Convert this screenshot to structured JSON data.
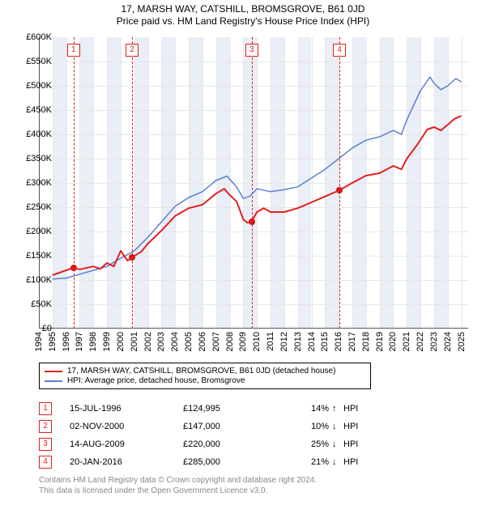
{
  "title": "17, MARSH WAY, CATSHILL, BROMSGROVE, B61 0JD",
  "subtitle": "Price paid vs. HM Land Registry's House Price Index (HPI)",
  "chart": {
    "type": "line",
    "background_color": "#ffffff",
    "band_color": "#eaeef7",
    "grid_color": "#e7e7e7",
    "axis_color": "#555555",
    "y": {
      "min": 0,
      "max": 600000,
      "step": 50000,
      "prefix": "£",
      "suffix": "K",
      "divisor": 1000
    },
    "x": {
      "min": 1994,
      "max": 2025.5,
      "ticks": [
        1994,
        1995,
        1996,
        1997,
        1998,
        1999,
        2000,
        2001,
        2002,
        2003,
        2004,
        2005,
        2006,
        2007,
        2008,
        2009,
        2010,
        2011,
        2012,
        2013,
        2014,
        2015,
        2016,
        2017,
        2018,
        2019,
        2020,
        2021,
        2022,
        2023,
        2024,
        2025
      ]
    },
    "series": [
      {
        "name": "property",
        "label": "17, MARSH WAY, CATSHILL, BROMSGROVE, B61 0JD (detached house)",
        "color": "#e02020",
        "width": 2,
        "points": [
          [
            1995.0,
            110000
          ],
          [
            1996.5,
            125000
          ],
          [
            1997.0,
            122000
          ],
          [
            1998.0,
            128000
          ],
          [
            1998.5,
            123000
          ],
          [
            1999.0,
            135000
          ],
          [
            1999.5,
            128000
          ],
          [
            2000.0,
            160000
          ],
          [
            2000.5,
            140000
          ],
          [
            2000.85,
            147000
          ],
          [
            2001.5,
            158000
          ],
          [
            2002.0,
            175000
          ],
          [
            2003.0,
            202000
          ],
          [
            2004.0,
            232000
          ],
          [
            2005.0,
            248000
          ],
          [
            2006.0,
            255000
          ],
          [
            2007.0,
            278000
          ],
          [
            2007.6,
            288000
          ],
          [
            2008.0,
            275000
          ],
          [
            2008.5,
            262000
          ],
          [
            2009.0,
            225000
          ],
          [
            2009.3,
            218000
          ],
          [
            2009.6,
            220000
          ],
          [
            2010.0,
            240000
          ],
          [
            2010.5,
            248000
          ],
          [
            2011.0,
            240000
          ],
          [
            2012.0,
            240000
          ],
          [
            2013.0,
            248000
          ],
          [
            2014.0,
            260000
          ],
          [
            2015.0,
            272000
          ],
          [
            2016.05,
            285000
          ],
          [
            2017.0,
            300000
          ],
          [
            2018.0,
            315000
          ],
          [
            2019.0,
            320000
          ],
          [
            2020.0,
            335000
          ],
          [
            2020.6,
            328000
          ],
          [
            2021.0,
            350000
          ],
          [
            2021.8,
            380000
          ],
          [
            2022.5,
            410000
          ],
          [
            2023.0,
            415000
          ],
          [
            2023.5,
            408000
          ],
          [
            2024.0,
            420000
          ],
          [
            2024.5,
            432000
          ],
          [
            2025.0,
            438000
          ]
        ]
      },
      {
        "name": "hpi",
        "label": "HPI: Average price, detached house, Bromsgrove",
        "color": "#5b7fd1",
        "width": 1.5,
        "points": [
          [
            1995.0,
            102000
          ],
          [
            1996.0,
            104000
          ],
          [
            1997.0,
            112000
          ],
          [
            1998.0,
            120000
          ],
          [
            1999.0,
            128000
          ],
          [
            2000.0,
            145000
          ],
          [
            2001.0,
            160000
          ],
          [
            2002.0,
            188000
          ],
          [
            2003.0,
            220000
          ],
          [
            2004.0,
            252000
          ],
          [
            2005.0,
            270000
          ],
          [
            2006.0,
            282000
          ],
          [
            2007.0,
            305000
          ],
          [
            2007.8,
            314000
          ],
          [
            2008.5,
            292000
          ],
          [
            2009.0,
            268000
          ],
          [
            2009.5,
            273000
          ],
          [
            2010.0,
            288000
          ],
          [
            2011.0,
            282000
          ],
          [
            2012.0,
            286000
          ],
          [
            2013.0,
            292000
          ],
          [
            2014.0,
            310000
          ],
          [
            2015.0,
            328000
          ],
          [
            2016.0,
            350000
          ],
          [
            2017.0,
            372000
          ],
          [
            2018.0,
            388000
          ],
          [
            2019.0,
            395000
          ],
          [
            2020.0,
            408000
          ],
          [
            2020.6,
            400000
          ],
          [
            2021.0,
            430000
          ],
          [
            2022.0,
            490000
          ],
          [
            2022.7,
            518000
          ],
          [
            2023.0,
            505000
          ],
          [
            2023.5,
            492000
          ],
          [
            2024.0,
            500000
          ],
          [
            2024.6,
            515000
          ],
          [
            2025.0,
            508000
          ]
        ]
      }
    ],
    "markers": [
      {
        "n": "1",
        "year": 1996.54,
        "value": 124995
      },
      {
        "n": "2",
        "year": 2000.84,
        "value": 147000
      },
      {
        "n": "3",
        "year": 2009.62,
        "value": 220000
      },
      {
        "n": "4",
        "year": 2016.05,
        "value": 285000
      }
    ]
  },
  "legend": {
    "items": [
      {
        "color": "#e02020",
        "label_key": "chart.series.0.label"
      },
      {
        "color": "#5b7fd1",
        "label_key": "chart.series.1.label"
      }
    ]
  },
  "sales": [
    {
      "n": "1",
      "date": "15-JUL-1996",
      "price": "£124,995",
      "delta": "14%",
      "arrow": "↑",
      "ref": "HPI"
    },
    {
      "n": "2",
      "date": "02-NOV-2000",
      "price": "£147,000",
      "delta": "10%",
      "arrow": "↓",
      "ref": "HPI"
    },
    {
      "n": "3",
      "date": "14-AUG-2009",
      "price": "£220,000",
      "delta": "25%",
      "arrow": "↓",
      "ref": "HPI"
    },
    {
      "n": "4",
      "date": "20-JAN-2016",
      "price": "£285,000",
      "delta": "21%",
      "arrow": "↓",
      "ref": "HPI"
    }
  ],
  "footnote": {
    "line1": "Contains HM Land Registry data © Crown copyright and database right 2024.",
    "line2": "This data is licensed under the Open Government Licence v3.0."
  }
}
